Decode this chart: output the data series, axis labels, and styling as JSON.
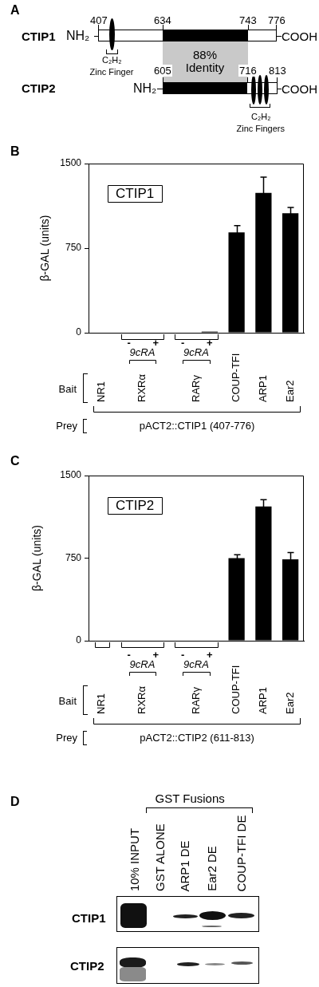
{
  "chart_data": [
    {
      "type": "other",
      "annotations": [
        "A",
        "CTIP1",
        "NH₂",
        "407",
        "634",
        "743",
        "776",
        "COOH",
        "C₂H₂",
        "Zinc Finger",
        "88% Identity",
        "CTIP2",
        "NH₂",
        "605",
        "716",
        "813",
        "COOH",
        "C₂H₂",
        "Zinc Fingers"
      ]
    },
    {
      "type": "bar",
      "title": "CTIP1",
      "ylabel": "β-GAL (units)",
      "categories": [
        null,
        "-",
        "+",
        "-",
        "+",
        null,
        null,
        null
      ],
      "values": [
        0,
        0,
        0,
        0,
        10,
        890,
        1240,
        1060
      ],
      "errors": [
        null,
        null,
        null,
        null,
        null,
        60,
        140,
        50
      ],
      "color": "#000000",
      "ylim": [
        0,
        1500
      ],
      "yticks": [
        0,
        750,
        1500
      ],
      "annotations": [
        "B",
        "9cRA",
        "9cRA",
        "Bait",
        "NR1",
        "RXRα",
        "RARγ",
        "COUP-TFI",
        "ARP1",
        "Ear2",
        "Prey",
        "pACT2::CTIP1 (407-776)"
      ]
    },
    {
      "type": "bar",
      "title": "CTIP2",
      "ylabel": "β-GAL (units)",
      "categories": [
        null,
        "-",
        "+",
        "-",
        "+",
        null,
        null,
        null
      ],
      "values": [
        0,
        0,
        0,
        0,
        0,
        750,
        1220,
        740
      ],
      "errors": [
        null,
        null,
        null,
        null,
        null,
        30,
        60,
        60
      ],
      "color": "#000000",
      "ylim": [
        0,
        1500
      ],
      "yticks": [
        0,
        750,
        1500
      ],
      "annotations": [
        "C",
        "9cRA",
        "9cRA",
        "Bait",
        "NR1",
        "RXRα",
        "RARγ",
        "COUP-TFI",
        "ARP1",
        "Ear2",
        "Prey",
        "pACT2::CTIP2 (611-813)"
      ]
    },
    {
      "type": "other",
      "annotations": [
        "D",
        "GST Fusions",
        "10% INPUT",
        "GST ALONE",
        "ARP1 DE",
        "Ear2 DE",
        "COUP-TFI DE",
        "CTIP1",
        "CTIP2"
      ]
    }
  ]
}
